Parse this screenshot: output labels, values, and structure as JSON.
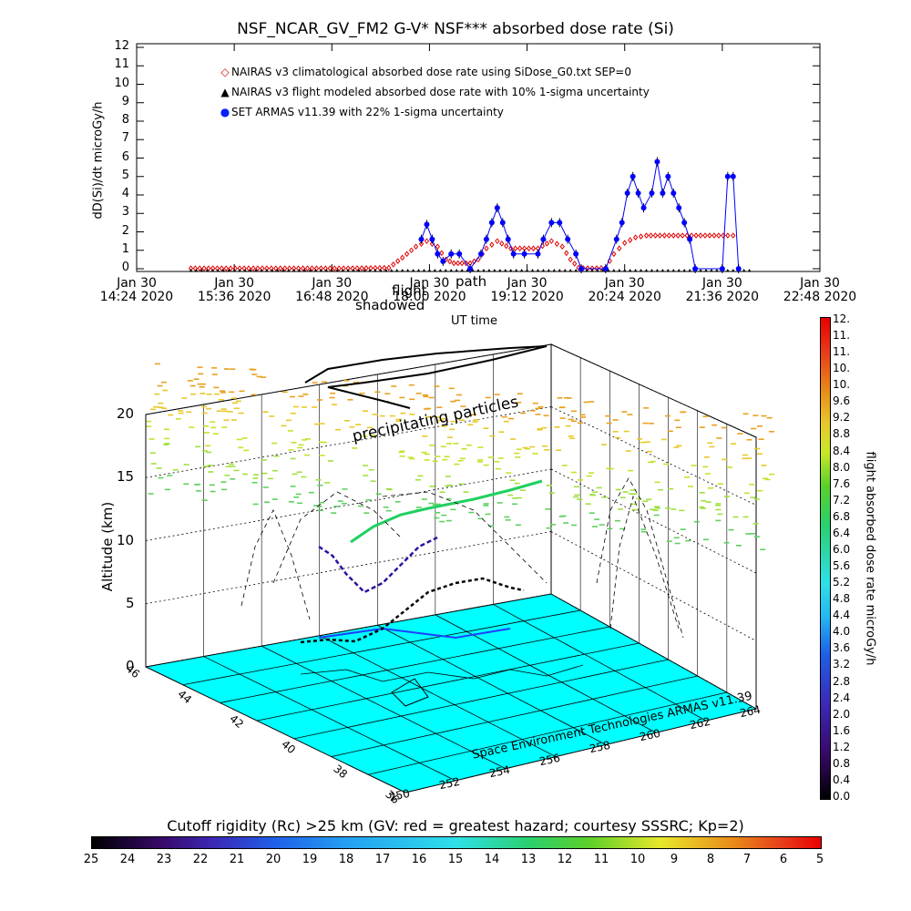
{
  "page": {
    "title": "NSF_NCAR_GV_FM2 G-V* NSF*** absorbed dose rate (Si)"
  },
  "chart_data": [
    {
      "type": "line",
      "title": "NSF_NCAR_GV_FM2 G-V* NSF*** absorbed dose rate (Si)",
      "xlabel": "UT time",
      "ylabel": "dD(Si)/dt microGy/h",
      "xlim": [
        "14:24",
        "22:48"
      ],
      "ylim": [
        0,
        12
      ],
      "yticks": [
        "0",
        "1",
        "2",
        "3",
        "4",
        "5",
        "6",
        "7",
        "8",
        "9",
        "10",
        "11",
        "12"
      ],
      "xticks": [
        {
          "t": "14:24",
          "line1": "Jan 30",
          "line2": "14:24 2020"
        },
        {
          "t": "15:36",
          "line1": "Jan 30",
          "line2": "15:36 2020"
        },
        {
          "t": "16:48",
          "line1": "Jan 30",
          "line2": "16:48 2020"
        },
        {
          "t": "18:00",
          "line1": "Jan 30",
          "line2": "18:00 2020"
        },
        {
          "t": "19:12",
          "line1": "Jan 30",
          "line2": "19:12 2020"
        },
        {
          "t": "20:24",
          "line1": "Jan 30",
          "line2": "20:24 2020"
        },
        {
          "t": "21:36",
          "line1": "Jan 30",
          "line2": "21:36 2020"
        },
        {
          "t": "22:48",
          "line1": "Jan 30",
          "line2": "22:48 2020"
        }
      ],
      "annotations": [
        "shadowed",
        "flight",
        "path"
      ],
      "legend_position": "top-left",
      "series": [
        {
          "name": "NAIRAS v3 climatological absorbed dose rate using SiDose_G0.txt SEP=0",
          "marker": "diamond",
          "color": "#ff0000",
          "points": [
            [
              "15:04",
              0.02
            ],
            [
              "15:30",
              0.02
            ],
            [
              "16:00",
              0.02
            ],
            [
              "16:30",
              0.02
            ],
            [
              "17:00",
              0.02
            ],
            [
              "17:30",
              0.05
            ],
            [
              "17:40",
              0.6
            ],
            [
              "17:50",
              1.2
            ],
            [
              "17:58",
              1.5
            ],
            [
              "18:06",
              1.2
            ],
            [
              "18:12",
              0.5
            ],
            [
              "18:18",
              0.3
            ],
            [
              "18:30",
              0.3
            ],
            [
              "18:36",
              0.5
            ],
            [
              "18:42",
              1.1
            ],
            [
              "18:50",
              1.5
            ],
            [
              "19:00",
              1.1
            ],
            [
              "19:10",
              1.1
            ],
            [
              "19:20",
              1.1
            ],
            [
              "19:30",
              1.5
            ],
            [
              "19:38",
              1.2
            ],
            [
              "19:44",
              0.5
            ],
            [
              "19:50",
              0.05
            ],
            [
              "20:00",
              0.02
            ],
            [
              "20:10",
              0.05
            ],
            [
              "20:16",
              0.8
            ],
            [
              "20:24",
              1.4
            ],
            [
              "20:32",
              1.7
            ],
            [
              "20:40",
              1.8
            ],
            [
              "21:00",
              1.8
            ],
            [
              "21:20",
              1.8
            ],
            [
              "21:40",
              1.8
            ],
            [
              "21:48",
              1.8
            ]
          ]
        },
        {
          "name": "NAIRAS v3 flight modeled absorbed dose rate with 10% 1-sigma uncertainty",
          "marker": "triangle",
          "color": "#000000",
          "points": [
            [
              "15:04",
              0.0
            ],
            [
              "16:00",
              0.0
            ],
            [
              "17:00",
              0.0
            ],
            [
              "18:00",
              0.0
            ],
            [
              "19:00",
              0.0
            ],
            [
              "20:00",
              0.0
            ],
            [
              "21:00",
              0.0
            ],
            [
              "21:40",
              0.0
            ],
            [
              "22:00",
              0.0
            ]
          ]
        },
        {
          "name": "SET ARMAS v11.39 with 22% 1-sigma uncertainty",
          "marker": "circle",
          "color": "#0000ff",
          "points": [
            [
              "17:54",
              1.6
            ],
            [
              "17:58",
              2.4
            ],
            [
              "18:02",
              1.6
            ],
            [
              "18:06",
              0.8
            ],
            [
              "18:10",
              0.4
            ],
            [
              "18:16",
              0.8
            ],
            [
              "18:22",
              0.8
            ],
            [
              "18:30",
              0.0
            ],
            [
              "18:38",
              0.8
            ],
            [
              "18:42",
              1.6
            ],
            [
              "18:46",
              2.5
            ],
            [
              "18:50",
              3.3
            ],
            [
              "18:54",
              2.5
            ],
            [
              "18:58",
              1.6
            ],
            [
              "19:02",
              0.8
            ],
            [
              "19:10",
              0.8
            ],
            [
              "19:20",
              0.8
            ],
            [
              "19:24",
              1.6
            ],
            [
              "19:30",
              2.5
            ],
            [
              "19:36",
              2.5
            ],
            [
              "19:42",
              1.6
            ],
            [
              "19:48",
              0.8
            ],
            [
              "19:52",
              0.0
            ],
            [
              "20:10",
              0.0
            ],
            [
              "20:18",
              1.6
            ],
            [
              "20:22",
              2.5
            ],
            [
              "20:26",
              4.1
            ],
            [
              "20:30",
              5.0
            ],
            [
              "20:34",
              4.1
            ],
            [
              "20:38",
              3.3
            ],
            [
              "20:44",
              4.1
            ],
            [
              "20:48",
              5.8
            ],
            [
              "20:52",
              4.1
            ],
            [
              "20:56",
              5.0
            ],
            [
              "21:00",
              4.1
            ],
            [
              "21:04",
              3.3
            ],
            [
              "21:08",
              2.5
            ],
            [
              "21:12",
              1.6
            ],
            [
              "21:16",
              0.0
            ],
            [
              "21:36",
              0.0
            ],
            [
              "21:40",
              5.0
            ],
            [
              "21:44",
              5.0
            ],
            [
              "21:48",
              0.0
            ]
          ]
        }
      ]
    },
    {
      "type": "scatter3d",
      "zlabel": "Altitude (km)",
      "zticks": [
        "0",
        "5",
        "10",
        "15",
        "20"
      ],
      "latticks": [
        "36",
        "38",
        "40",
        "42",
        "44",
        "46"
      ],
      "lonticks": [
        "250",
        "252",
        "254",
        "256",
        "258",
        "260",
        "262",
        "264"
      ],
      "annotations": [
        "precipitating particles"
      ],
      "credit": "Space Environment Technologies ARMAS v11.39"
    }
  ],
  "colorbar_right": {
    "title": "flight absorbed dose rate microGy/h",
    "ticks": [
      "12.",
      "11.",
      "11.",
      "10.",
      "10.",
      "9.6",
      "9.2",
      "8.8",
      "8.4",
      "8.0",
      "7.6",
      "7.2",
      "6.8",
      "6.4",
      "6.0",
      "5.6",
      "5.2",
      "4.8",
      "4.4",
      "4.0",
      "3.6",
      "3.2",
      "2.8",
      "2.4",
      "2.0",
      "1.6",
      "1.2",
      "0.8",
      "0.4",
      "0.0"
    ]
  },
  "colorbar_bottom": {
    "title": "Cutoff rigidity (Rc) >25 km (GV: red = greatest hazard; courtesy SSSRC; Kp=2)",
    "ticks": [
      "25",
      "24",
      "23",
      "22",
      "21",
      "20",
      "19",
      "18",
      "17",
      "16",
      "15",
      "14",
      "13",
      "12",
      "11",
      "10",
      "9",
      "8",
      "7",
      "6",
      "5"
    ]
  }
}
